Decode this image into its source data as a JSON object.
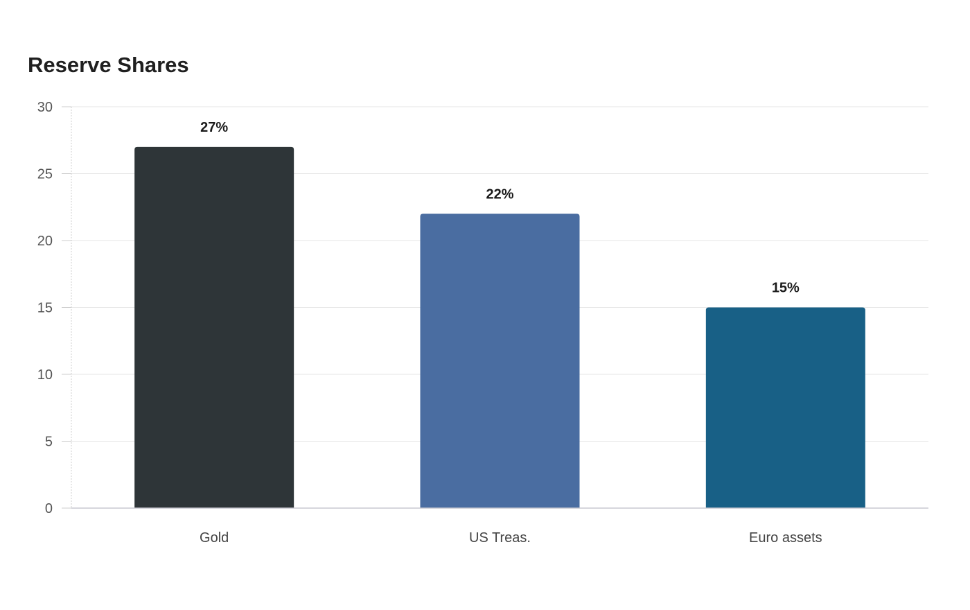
{
  "chart_data": {
    "type": "bar",
    "title": "Reserve Shares",
    "categories": [
      "Gold",
      "US Treas.",
      "Euro assets"
    ],
    "values": [
      27,
      22,
      15
    ],
    "data_labels": [
      "27%",
      "22%",
      "15%"
    ],
    "colors": [
      "#2e3538",
      "#4a6da1",
      "#186086"
    ],
    "ylim": [
      0,
      30
    ],
    "yticks": [
      0,
      5,
      10,
      15,
      20,
      25,
      30
    ],
    "xlabel": "",
    "ylabel": "",
    "grid": true,
    "legend": "none"
  }
}
